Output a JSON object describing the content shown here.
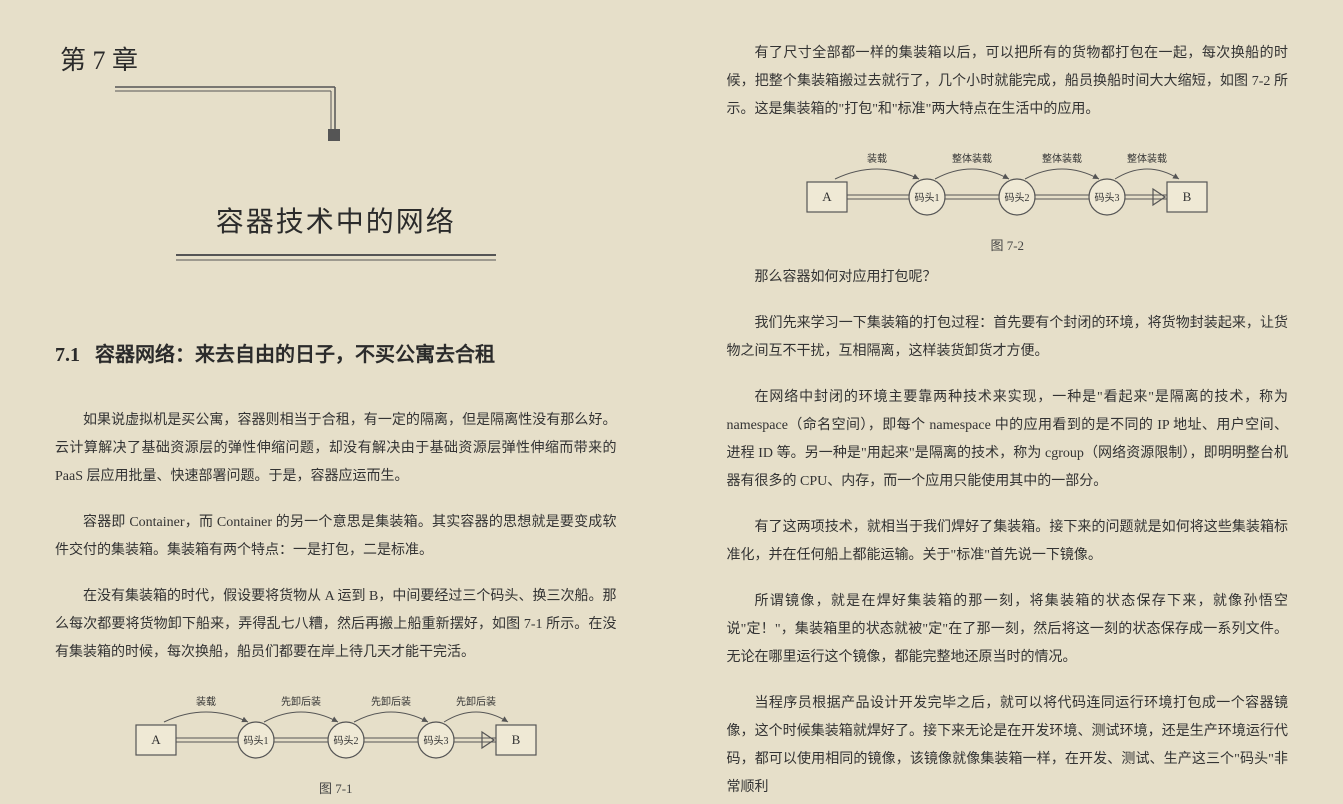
{
  "left": {
    "chapter_label": "第 7 章",
    "chapter_title": "容器技术中的网络",
    "section_num": "7.1",
    "section_title": "容器网络：来去自由的日子，不买公寓去合租",
    "p1": "如果说虚拟机是买公寓，容器则相当于合租，有一定的隔离，但是隔离性没有那么好。云计算解决了基础资源层的弹性伸缩问题，却没有解决由于基础资源层弹性伸缩而带来的 PaaS 层应用批量、快速部署问题。于是，容器应运而生。",
    "p2": "容器即 Container，而 Container 的另一个意思是集装箱。其实容器的思想就是要变成软件交付的集装箱。集装箱有两个特点：一是打包，二是标准。",
    "p3": "在没有集装箱的时代，假设要将货物从 A 运到 B，中间要经过三个码头、换三次船。那么每次都要将货物卸下船来，弄得乱七八糟，然后再搬上船重新摆好，如图 7-1 所示。在没有集装箱的时候，每次换船，船员们都要在岸上待几天才能干完活。",
    "fig1": {
      "caption": "图 7-1",
      "colors": {
        "bg": "#e2dac3",
        "stroke": "#555",
        "fill": "#efe9d5",
        "text": "#333"
      },
      "box_a": "A",
      "box_b": "B",
      "nodes": [
        "码头1",
        "码头2",
        "码头3"
      ],
      "edge_labels": [
        "装载",
        "先卸后装",
        "先卸后装",
        "先卸后装"
      ]
    }
  },
  "right": {
    "p1": "有了尺寸全部都一样的集装箱以后，可以把所有的货物都打包在一起，每次换船的时候，把整个集装箱搬过去就行了，几个小时就能完成，船员换船时间大大缩短，如图 7-2 所示。这是集装箱的\"打包\"和\"标准\"两大特点在生活中的应用。",
    "fig2": {
      "caption": "图 7-2",
      "colors": {
        "bg": "#e2dac3",
        "stroke": "#555",
        "fill": "#efe9d5",
        "text": "#333"
      },
      "box_a": "A",
      "box_b": "B",
      "nodes": [
        "码头1",
        "码头2",
        "码头3"
      ],
      "edge_labels": [
        "装载",
        "整体装载",
        "整体装载",
        "整体装载"
      ]
    },
    "p2": "那么容器如何对应用打包呢？",
    "p3": "我们先来学习一下集装箱的打包过程：首先要有个封闭的环境，将货物封装起来，让货物之间互不干扰，互相隔离，这样装货卸货才方便。",
    "p4": "在网络中封闭的环境主要靠两种技术来实现，一种是\"看起来\"是隔离的技术，称为 namespace（命名空间），即每个 namespace 中的应用看到的是不同的 IP 地址、用户空间、进程 ID 等。另一种是\"用起来\"是隔离的技术，称为 cgroup（网络资源限制），即明明整台机器有很多的 CPU、内存，而一个应用只能使用其中的一部分。",
    "p5": "有了这两项技术，就相当于我们焊好了集装箱。接下来的问题就是如何将这些集装箱标准化，并在任何船上都能运输。关于\"标准\"首先说一下镜像。",
    "p6": "所谓镜像，就是在焊好集装箱的那一刻，将集装箱的状态保存下来，就像孙悟空说\"定！\"，集装箱里的状态就被\"定\"在了那一刻，然后将这一刻的状态保存成一系列文件。无论在哪里运行这个镜像，都能完整地还原当时的情况。",
    "p7": "当程序员根据产品设计开发完毕之后，就可以将代码连同运行环境打包成一个容器镜像，这个时候集装箱就焊好了。接下来无论是在开发环境、测试环境，还是生产环境运行代码，都可以使用相同的镜像，该镜像就像集装箱一样，在开发、测试、生产这三个\"码头\"非常顺利"
  }
}
